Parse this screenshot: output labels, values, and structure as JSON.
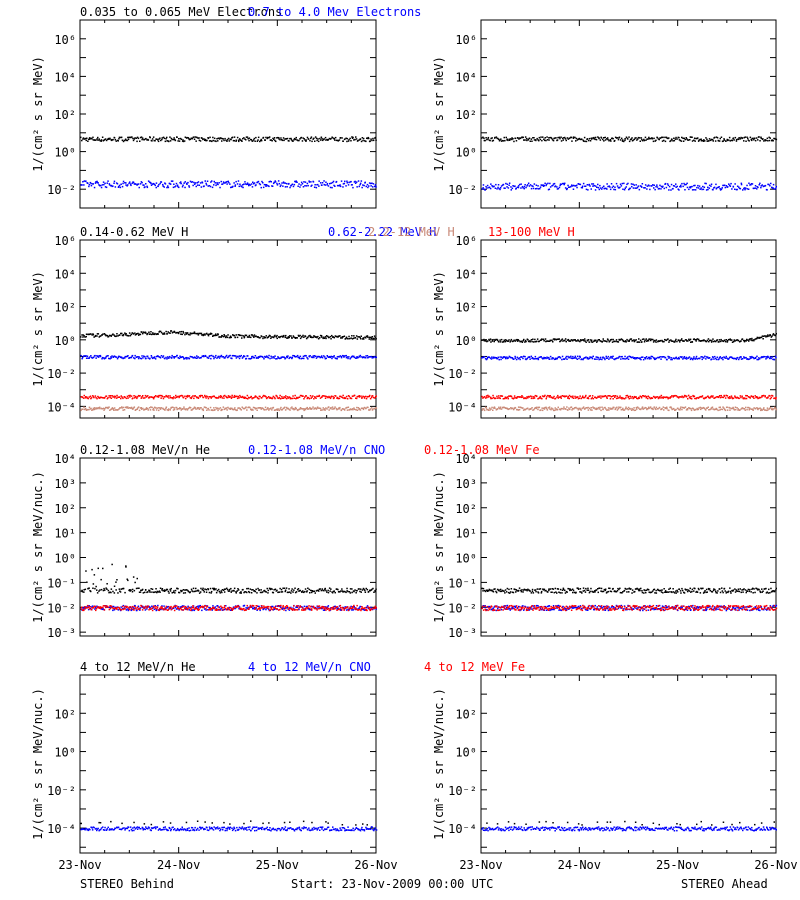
{
  "colors": {
    "black": "#000000",
    "blue": "#0000ff",
    "salmon": "#c98a78",
    "red": "#ff0000"
  },
  "footer": {
    "left_label": "STEREO Behind",
    "center_label": "Start: 23-Nov-2009 00:00 UTC",
    "right_label": "STEREO Ahead"
  },
  "chart_data": [
    {
      "type": "scatter",
      "row": 1,
      "spacecraft": "STEREO Behind",
      "ylabel": "1/(cm² s sr MeV)",
      "yscale": "log",
      "ylim": [
        0.001,
        10000000
      ],
      "yticks": [
        {
          "e": -2,
          "label": "10⁻²"
        },
        {
          "e": 0,
          "label": "10⁰"
        },
        {
          "e": 2,
          "label": "10²"
        },
        {
          "e": 4,
          "label": "10⁴"
        },
        {
          "e": 6,
          "label": "10⁶"
        }
      ],
      "x": {
        "start": "23-Nov-2009 00:00",
        "days": 3,
        "ticks": [
          "23-Nov",
          "24-Nov",
          "25-Nov",
          "26-Nov"
        ]
      },
      "series": [
        {
          "name": "0.035 to 0.065 MeV Electrons",
          "color": "#000000",
          "approx_level": 5,
          "spread_decades": 0.12
        },
        {
          "name": "0.7 to 4.0 Mev Electrons",
          "color": "#0000ff",
          "approx_level": 0.02,
          "spread_decades": 0.18
        }
      ]
    },
    {
      "type": "scatter",
      "row": 1,
      "spacecraft": "STEREO Ahead",
      "ylabel": "1/(cm² s sr MeV)",
      "yscale": "log",
      "ylim": [
        0.001,
        10000000
      ],
      "yticks": [
        {
          "e": -2,
          "label": "10⁻²"
        },
        {
          "e": 0,
          "label": "10⁰"
        },
        {
          "e": 2,
          "label": "10²"
        },
        {
          "e": 4,
          "label": "10⁴"
        },
        {
          "e": 6,
          "label": "10⁶"
        }
      ],
      "x": {
        "start": "23-Nov-2009 00:00",
        "days": 3,
        "ticks": [
          "23-Nov",
          "24-Nov",
          "25-Nov",
          "26-Nov"
        ]
      },
      "series": [
        {
          "name": "0.035 to 0.065 MeV Electrons",
          "color": "#000000",
          "approx_level": 5,
          "spread_decades": 0.12
        },
        {
          "name": "0.7 to 4.0 Mev Electrons",
          "color": "#0000ff",
          "approx_level": 0.015,
          "spread_decades": 0.18
        }
      ]
    },
    {
      "type": "scatter",
      "row": 2,
      "spacecraft": "STEREO Behind",
      "ylabel": "1/(cm² s sr MeV)",
      "yscale": "log",
      "ylim": [
        2e-05,
        1000000
      ],
      "yticks": [
        {
          "e": -4,
          "label": "10⁻⁴"
        },
        {
          "e": -2,
          "label": "10⁻²"
        },
        {
          "e": 0,
          "label": "10⁰"
        },
        {
          "e": 2,
          "label": "10²"
        },
        {
          "e": 4,
          "label": "10⁴"
        },
        {
          "e": 6,
          "label": "10⁶"
        }
      ],
      "x": {
        "start": "23-Nov-2009 00:00",
        "days": 3,
        "ticks": [
          "23-Nov",
          "24-Nov",
          "25-Nov",
          "26-Nov"
        ]
      },
      "series": [
        {
          "name": "0.14-0.62 MeV H",
          "color": "#000000",
          "approx_level": 2,
          "note": "slight hump to ~3.5 near 24-Nov, ~1.2 by 26-Nov"
        },
        {
          "name": "0.62-2.22 MeV H",
          "color": "#0000ff",
          "approx_level": 0.1
        },
        {
          "name": "2.2-12 MeV H",
          "color": "#c98a78",
          "approx_level": 8e-05
        },
        {
          "name": "13-100 MeV H",
          "color": "#ff0000",
          "approx_level": 0.0004
        }
      ]
    },
    {
      "type": "scatter",
      "row": 2,
      "spacecraft": "STEREO Ahead",
      "ylabel": "1/(cm² s sr MeV)",
      "yscale": "log",
      "ylim": [
        2e-05,
        1000000
      ],
      "yticks": [
        {
          "e": -4,
          "label": "10⁻⁴"
        },
        {
          "e": -2,
          "label": "10⁻²"
        },
        {
          "e": 0,
          "label": "10⁰"
        },
        {
          "e": 2,
          "label": "10²"
        },
        {
          "e": 4,
          "label": "10⁴"
        },
        {
          "e": 6,
          "label": "10⁶"
        }
      ],
      "x": {
        "start": "23-Nov-2009 00:00",
        "days": 3,
        "ticks": [
          "23-Nov",
          "24-Nov",
          "25-Nov",
          "26-Nov"
        ]
      },
      "series": [
        {
          "name": "0.14-0.62 MeV H",
          "color": "#000000",
          "approx_level": 1,
          "note": "rises to ~3 at end of 26-Nov"
        },
        {
          "name": "0.62-2.22 MeV H",
          "color": "#0000ff",
          "approx_level": 0.09
        },
        {
          "name": "2.2-12 MeV H",
          "color": "#c98a78",
          "approx_level": 8e-05
        },
        {
          "name": "13-100 MeV H",
          "color": "#ff0000",
          "approx_level": 0.0004
        }
      ]
    },
    {
      "type": "scatter",
      "row": 3,
      "spacecraft": "STEREO Behind",
      "ylabel": "1/(cm² s sr MeV/nuc.)",
      "yscale": "log",
      "ylim": [
        0.0007,
        10000
      ],
      "yticks": [
        {
          "e": -3,
          "label": "10⁻³"
        },
        {
          "e": -2,
          "label": "10⁻²"
        },
        {
          "e": -1,
          "label": "10⁻¹"
        },
        {
          "e": 0,
          "label": "10⁰"
        },
        {
          "e": 1,
          "label": "10¹"
        },
        {
          "e": 2,
          "label": "10²"
        },
        {
          "e": 3,
          "label": "10³"
        },
        {
          "e": 4,
          "label": "10⁴"
        }
      ],
      "x": {
        "start": "23-Nov-2009 00:00",
        "days": 3,
        "ticks": [
          "23-Nov",
          "24-Nov",
          "25-Nov",
          "26-Nov"
        ]
      },
      "series": [
        {
          "name": "0.12-1.08 MeV/n He",
          "color": "#000000",
          "approx_level": 0.05,
          "note": "scatter up to ~0.5 during first half day"
        },
        {
          "name": "0.12-1.08 MeV/n CNO",
          "color": "#0000ff",
          "approx_level": 0.01
        },
        {
          "name": "0.12-1.08 MeV Fe",
          "color": "#ff0000",
          "approx_level": 0.01
        }
      ]
    },
    {
      "type": "scatter",
      "row": 3,
      "spacecraft": "STEREO Ahead",
      "ylabel": "1/(cm² s sr MeV/nuc.)",
      "yscale": "log",
      "ylim": [
        0.0007,
        10000
      ],
      "yticks": [
        {
          "e": -3,
          "label": "10⁻³"
        },
        {
          "e": -2,
          "label": "10⁻²"
        },
        {
          "e": -1,
          "label": "10⁻¹"
        },
        {
          "e": 0,
          "label": "10⁰"
        },
        {
          "e": 1,
          "label": "10¹"
        },
        {
          "e": 2,
          "label": "10²"
        },
        {
          "e": 3,
          "label": "10³"
        },
        {
          "e": 4,
          "label": "10⁴"
        }
      ],
      "x": {
        "start": "23-Nov-2009 00:00",
        "days": 3,
        "ticks": [
          "23-Nov",
          "24-Nov",
          "25-Nov",
          "26-Nov"
        ]
      },
      "series": [
        {
          "name": "0.12-1.08 MeV/n He",
          "color": "#000000",
          "approx_level": 0.05
        },
        {
          "name": "0.12-1.08 MeV/n CNO",
          "color": "#0000ff",
          "approx_level": 0.01
        },
        {
          "name": "0.12-1.08 MeV Fe",
          "color": "#ff0000",
          "approx_level": 0.01
        }
      ]
    },
    {
      "type": "scatter",
      "row": 4,
      "spacecraft": "STEREO Behind",
      "ylabel": "1/(cm² s sr MeV/nuc.)",
      "yscale": "log",
      "ylim": [
        5e-06,
        10000
      ],
      "yticks": [
        {
          "e": -4,
          "label": "10⁻⁴"
        },
        {
          "e": -2,
          "label": "10⁻²"
        },
        {
          "e": 0,
          "label": "10⁰"
        },
        {
          "e": 2,
          "label": "10²"
        }
      ],
      "x": {
        "start": "23-Nov-2009 00:00",
        "days": 3,
        "ticks": [
          "23-Nov",
          "24-Nov",
          "25-Nov",
          "26-Nov"
        ]
      },
      "series": [
        {
          "name": "4 to 12 MeV/n He",
          "color": "#000000",
          "approx_level": 0.0002,
          "note": "sparse points"
        },
        {
          "name": "4 to 12 MeV/n CNO",
          "color": "#0000ff",
          "approx_level": 0.0001
        },
        {
          "name": "4 to 12 MeV Fe",
          "color": "#ff0000",
          "approx_level": null
        }
      ]
    },
    {
      "type": "scatter",
      "row": 4,
      "spacecraft": "STEREO Ahead",
      "ylabel": "1/(cm² s sr MeV/nuc.)",
      "yscale": "log",
      "ylim": [
        5e-06,
        10000
      ],
      "yticks": [
        {
          "e": -4,
          "label": "10⁻⁴"
        },
        {
          "e": -2,
          "label": "10⁻²"
        },
        {
          "e": 0,
          "label": "10⁰"
        },
        {
          "e": 2,
          "label": "10²"
        }
      ],
      "x": {
        "start": "23-Nov-2009 00:00",
        "days": 3,
        "ticks": [
          "23-Nov",
          "24-Nov",
          "25-Nov",
          "26-Nov"
        ]
      },
      "series": [
        {
          "name": "4 to 12 MeV/n He",
          "color": "#000000",
          "approx_level": 0.0002,
          "note": "sparse points"
        },
        {
          "name": "4 to 12 MeV/n CNO",
          "color": "#0000ff",
          "approx_level": 0.0001
        },
        {
          "name": "4 to 12 MeV Fe",
          "color": "#ff0000",
          "approx_level": null
        }
      ]
    }
  ]
}
